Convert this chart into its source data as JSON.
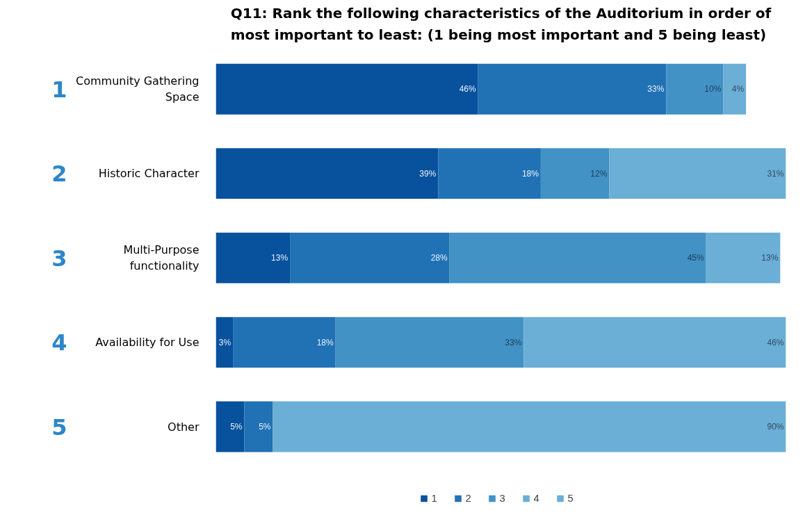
{
  "chart_data": {
    "type": "bar",
    "orientation": "horizontal",
    "stacked": true,
    "title": "Q11: Rank the following characteristics of the Auditorium in order of most important to least: (1 being most important and 5 being least)",
    "categories": [
      "Community Gathering Space",
      "Historic Character",
      "Multi-Purpose functionality",
      "Availability for Use",
      "Other"
    ],
    "series": [
      {
        "name": "1",
        "color": "#08519c",
        "values": [
          46,
          39,
          13,
          3,
          5
        ],
        "value_labels": [
          "46%",
          "39%",
          "13%",
          "3%",
          "5%"
        ]
      },
      {
        "name": "2",
        "color": "#2171b5",
        "values": [
          33,
          18,
          28,
          18,
          5
        ],
        "value_labels": [
          "33%",
          "18%",
          "28%",
          "18%",
          "5%"
        ]
      },
      {
        "name": "3",
        "color": "#4292c6",
        "values": [
          10,
          12,
          45,
          33,
          null
        ],
        "value_labels": [
          "10%",
          "12%",
          "45%",
          "33%",
          null
        ]
      },
      {
        "name": "4",
        "color": "#6baed6",
        "values": [
          4,
          31,
          13,
          46,
          90
        ],
        "value_labels": [
          "4%",
          "31%",
          "13%",
          "46%",
          "90%"
        ]
      },
      {
        "name": "5",
        "color": "#6aaed8",
        "values": [
          null,
          null,
          null,
          null,
          null
        ]
      }
    ],
    "xlim": [
      0,
      100
    ],
    "tick_labels": "y",
    "grid": false,
    "legend": "bottom",
    "annotations": [
      "1",
      "2",
      "3",
      "4",
      "5"
    ]
  }
}
